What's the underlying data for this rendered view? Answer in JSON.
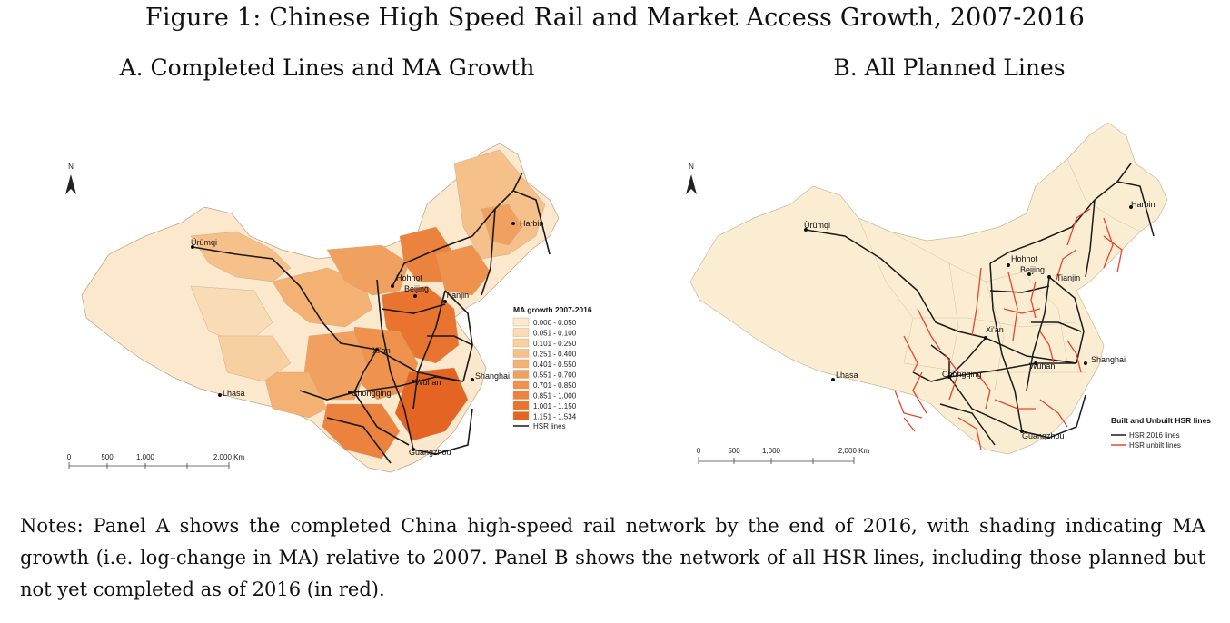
{
  "figure_title": "Figure 1: Chinese High Speed Rail and Market Access Growth, 2007-2016",
  "panel_a": {
    "title": "A. Completed Lines and MA Growth",
    "north_label": "N",
    "legend_title": "MA growth 2007-2016",
    "legend_items": [
      {
        "label": "0.000 - 0.050",
        "color": "#fbe8cd"
      },
      {
        "label": "0.051 - 0.100",
        "color": "#f9dbb6"
      },
      {
        "label": "0.101 - 0.250",
        "color": "#f7cfa0"
      },
      {
        "label": "0.251 - 0.400",
        "color": "#f5c08a"
      },
      {
        "label": "0.401 - 0.550",
        "color": "#f3b174"
      },
      {
        "label": "0.551 - 0.700",
        "color": "#f0a160"
      },
      {
        "label": "0.701 - 0.850",
        "color": "#ee924e"
      },
      {
        "label": "0.851 - 1.000",
        "color": "#eb833e"
      },
      {
        "label": "1.001 - 1.150",
        "color": "#e87430"
      },
      {
        "label": "1.151 - 1.534",
        "color": "#e46523"
      }
    ],
    "hsr_label": "HSR lines",
    "cities": [
      "Ürümqi",
      "Hohhot",
      "Beijing",
      "Tianjin",
      "Harbin",
      "Xi'an",
      "Chongqing",
      "Wuhan",
      "Shanghai",
      "Lhasa",
      "Guangzhou"
    ],
    "scale_labels": [
      "0",
      "500",
      "1,000",
      "2,000 Km"
    ]
  },
  "panel_b": {
    "title": "B. All Planned Lines",
    "north_label": "N",
    "legend_title": "Built and Unbuilt HSR lines",
    "legend_items": [
      {
        "label": "HSR 2016 lines",
        "color": "#1a1a1a"
      },
      {
        "label": "HSR unbilt lines",
        "color": "#e8452c"
      }
    ],
    "cities": [
      "Ürümqi",
      "Hohhot",
      "Beijing",
      "Tianjin",
      "Harbin",
      "Xi'an",
      "Chongqing",
      "Wuhan",
      "Shanghai",
      "Lhasa",
      "Guangzhou"
    ],
    "scale_labels": [
      "0",
      "500",
      "1,000",
      "2,000 Km"
    ]
  },
  "colors": {
    "map_base": "#fbe8cd",
    "map_base_b": "#fbedd2",
    "hsr_built": "#1a1a1a",
    "hsr_unbuilt": "#e8452c"
  },
  "notes": "Notes: Panel A shows the completed China high-speed rail network by the end of 2016, with shading indicating MA growth (i.e. log-change in MA) relative to 2007. Panel B shows the network of all HSR lines, including those planned but not yet completed as of 2016 (in red)."
}
